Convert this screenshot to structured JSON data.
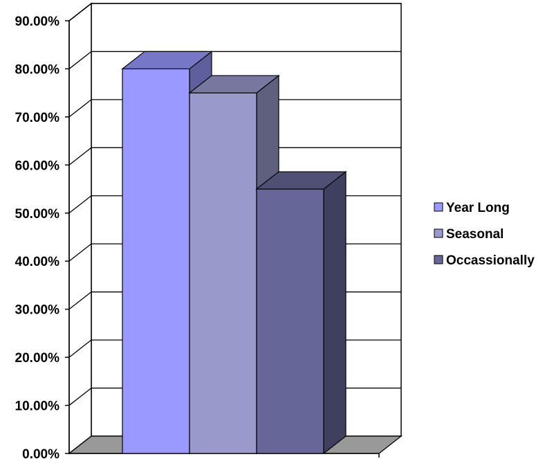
{
  "chart_data": {
    "type": "bar",
    "title": "",
    "xlabel": "",
    "ylabel": "",
    "ylim": [
      0,
      90
    ],
    "y_ticks": [
      "0.00%",
      "10.00%",
      "20.00%",
      "30.00%",
      "40.00%",
      "50.00%",
      "60.00%",
      "70.00%",
      "80.00%",
      "90.00%"
    ],
    "grid": true,
    "legend_position": "right",
    "three_d": true,
    "series": [
      {
        "name": "Year Long",
        "value": 80,
        "color": "#9999ff"
      },
      {
        "name": "Seasonal",
        "value": 75,
        "color": "#9999cc"
      },
      {
        "name": "Occassionally",
        "value": 55,
        "color": "#666699"
      }
    ]
  }
}
